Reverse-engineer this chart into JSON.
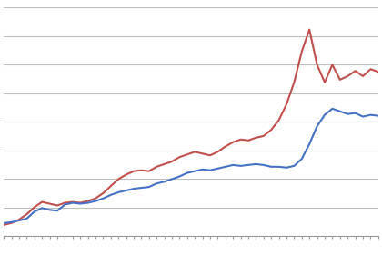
{
  "blue": [
    1.5,
    1.6,
    1.8,
    2.0,
    2.8,
    3.2,
    3.0,
    2.9,
    3.6,
    3.8,
    3.7,
    3.8,
    4.0,
    4.3,
    4.7,
    5.0,
    5.2,
    5.4,
    5.5,
    5.6,
    6.0,
    6.2,
    6.5,
    6.8,
    7.2,
    7.4,
    7.6,
    7.5,
    7.7,
    7.9,
    8.1,
    8.0,
    8.1,
    8.2,
    8.1,
    7.9,
    7.9,
    7.8,
    8.0,
    8.8,
    10.5,
    12.5,
    13.8,
    14.5,
    14.2,
    13.9,
    14.0,
    13.6,
    13.8,
    13.7
  ],
  "red": [
    1.3,
    1.5,
    1.9,
    2.5,
    3.3,
    3.9,
    3.7,
    3.5,
    3.8,
    3.9,
    3.8,
    4.0,
    4.3,
    4.9,
    5.7,
    6.5,
    7.0,
    7.4,
    7.5,
    7.4,
    7.9,
    8.2,
    8.5,
    9.0,
    9.3,
    9.6,
    9.4,
    9.2,
    9.6,
    10.2,
    10.7,
    11.0,
    10.9,
    11.2,
    11.4,
    12.1,
    13.2,
    15.0,
    17.5,
    21.0,
    23.5,
    19.5,
    17.5,
    19.5,
    17.8,
    18.2,
    18.8,
    18.2,
    19.0,
    18.7
  ],
  "blue_color": "#4472C4",
  "red_color": "#C0504D",
  "background_color": "#FFFFFF",
  "grid_color": "#BEBEBE",
  "line_width": 1.5,
  "n_gridlines": 8,
  "ylim": [
    0,
    26
  ],
  "xlim": [
    0,
    49
  ]
}
